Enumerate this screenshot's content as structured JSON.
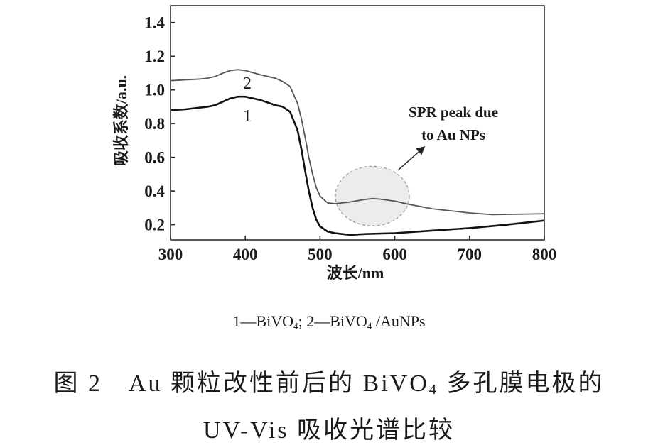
{
  "chart_data": {
    "type": "line",
    "title": "",
    "xlabel": "波长/nm",
    "ylabel": "吸收系数/a.u.",
    "xlim": [
      300,
      800
    ],
    "ylim": [
      0.11,
      1.5
    ],
    "xticks": [
      "300",
      "400",
      "500",
      "600",
      "700",
      "800"
    ],
    "yticks": [
      "0.2",
      "0.4",
      "0.6",
      "0.8",
      "1.0",
      "1.2",
      "1.4"
    ],
    "grid": false,
    "series": [
      {
        "name": "1",
        "label": "1",
        "color": "#111111",
        "x": [
          300,
          320,
          340,
          350,
          360,
          370,
          380,
          390,
          400,
          420,
          440,
          450,
          460,
          470,
          475,
          480,
          485,
          490,
          495,
          500,
          510,
          520,
          540,
          560,
          600,
          650,
          700,
          750,
          800
        ],
        "y": [
          0.88,
          0.885,
          0.895,
          0.9,
          0.91,
          0.93,
          0.95,
          0.96,
          0.96,
          0.94,
          0.91,
          0.9,
          0.87,
          0.76,
          0.65,
          0.52,
          0.4,
          0.3,
          0.23,
          0.19,
          0.16,
          0.15,
          0.14,
          0.145,
          0.15,
          0.165,
          0.18,
          0.2,
          0.225
        ]
      },
      {
        "name": "2",
        "label": "2",
        "color": "#555555",
        "x": [
          300,
          320,
          340,
          350,
          360,
          370,
          380,
          390,
          400,
          420,
          440,
          450,
          460,
          470,
          475,
          480,
          485,
          490,
          495,
          500,
          510,
          520,
          540,
          560,
          570,
          580,
          600,
          620,
          650,
          700,
          730,
          760,
          800
        ],
        "y": [
          1.055,
          1.06,
          1.065,
          1.07,
          1.08,
          1.1,
          1.115,
          1.12,
          1.115,
          1.09,
          1.07,
          1.05,
          1.02,
          0.92,
          0.83,
          0.72,
          0.6,
          0.5,
          0.42,
          0.37,
          0.33,
          0.325,
          0.335,
          0.35,
          0.355,
          0.352,
          0.34,
          0.32,
          0.295,
          0.27,
          0.26,
          0.262,
          0.265
        ]
      }
    ],
    "annotations": [
      {
        "text_lines": [
          "SPR peak due",
          "to Au NPs"
        ],
        "target_x": 570,
        "target_y": 0.37
      }
    ]
  },
  "legend": {
    "parts": [
      "1—BiVO",
      "4",
      "; 2—BiVO",
      "4",
      " /AuNPs"
    ]
  },
  "caption": {
    "line1_parts": [
      "图 2　Au 颗粒改性前后的 BiVO",
      "4",
      " 多孔膜电极的"
    ],
    "line2": "UV-Vis 吸收光谱比较"
  }
}
